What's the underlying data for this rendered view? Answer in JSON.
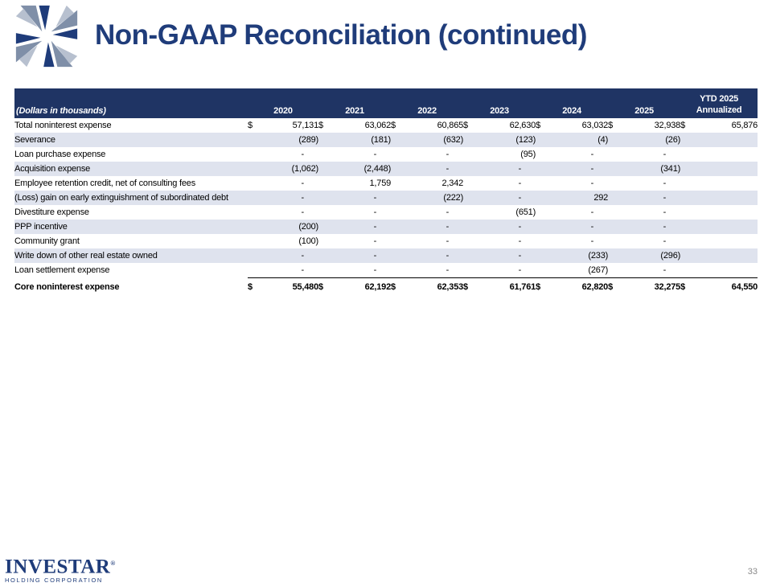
{
  "slide": {
    "title": "Non-GAAP Reconciliation (continued)",
    "page_number": "33"
  },
  "brand": {
    "name": "INVESTAR",
    "subtitle": "HOLDING CORPORATION",
    "registered": "®",
    "logo_icon": "pinwheel-logo-icon",
    "colors": {
      "primary": "#1f3c7a",
      "accent": "#7f8fa8",
      "header_bg": "#1f3464",
      "alt_row": "#dfe3ee"
    }
  },
  "table": {
    "label_header": "(Dollars in thousands)",
    "years": [
      "2020",
      "2021",
      "2022",
      "2023",
      "2024",
      "2025"
    ],
    "ytd_header_line1": "YTD 2025",
    "ytd_header_line2": "Annualized",
    "currency": "$",
    "rows": [
      {
        "label": "Total noninterest expense",
        "dollar": true,
        "values": [
          "57,131",
          "63,062",
          "60,865",
          "62,630",
          "63,032",
          "32,938",
          "65,876"
        ]
      },
      {
        "label": "Severance",
        "values": [
          "(289)",
          "(181)",
          "(632)",
          "(123)",
          "(4)",
          "(26)",
          ""
        ]
      },
      {
        "label": "Loan purchase expense",
        "values": [
          "-",
          "-",
          "-",
          "(95)",
          "-",
          "-",
          ""
        ]
      },
      {
        "label": "Acquisition expense",
        "values": [
          "(1,062)",
          "(2,448)",
          "-",
          "-",
          "-",
          "(341)",
          ""
        ]
      },
      {
        "label": "Employee retention credit, net of consulting fees",
        "values": [
          "-",
          "1,759",
          "2,342",
          "-",
          "-",
          "-",
          ""
        ]
      },
      {
        "label": "(Loss) gain on early extinguishment of subordinated debt",
        "values": [
          "-",
          "-",
          "(222)",
          "-",
          "292",
          "-",
          ""
        ]
      },
      {
        "label": "Divestiture expense",
        "values": [
          "-",
          "-",
          "-",
          "(651)",
          "-",
          "-",
          ""
        ]
      },
      {
        "label": "PPP incentive",
        "values": [
          "(200)",
          "-",
          "-",
          "-",
          "-",
          "-",
          ""
        ]
      },
      {
        "label": "Community grant",
        "values": [
          "(100)",
          "-",
          "-",
          "-",
          "-",
          "-",
          ""
        ]
      },
      {
        "label": "Write down of other real estate owned",
        "values": [
          "-",
          "-",
          "-",
          "-",
          "(233)",
          "(296)",
          ""
        ]
      },
      {
        "label": "Loan settlement expense",
        "values": [
          "-",
          "-",
          "-",
          "-",
          "(267)",
          "-",
          ""
        ]
      }
    ],
    "total": {
      "label": "Core noninterest expense",
      "values": [
        "55,480",
        "62,192",
        "62,353",
        "61,761",
        "62,820",
        "32,275",
        "64,550"
      ]
    }
  }
}
